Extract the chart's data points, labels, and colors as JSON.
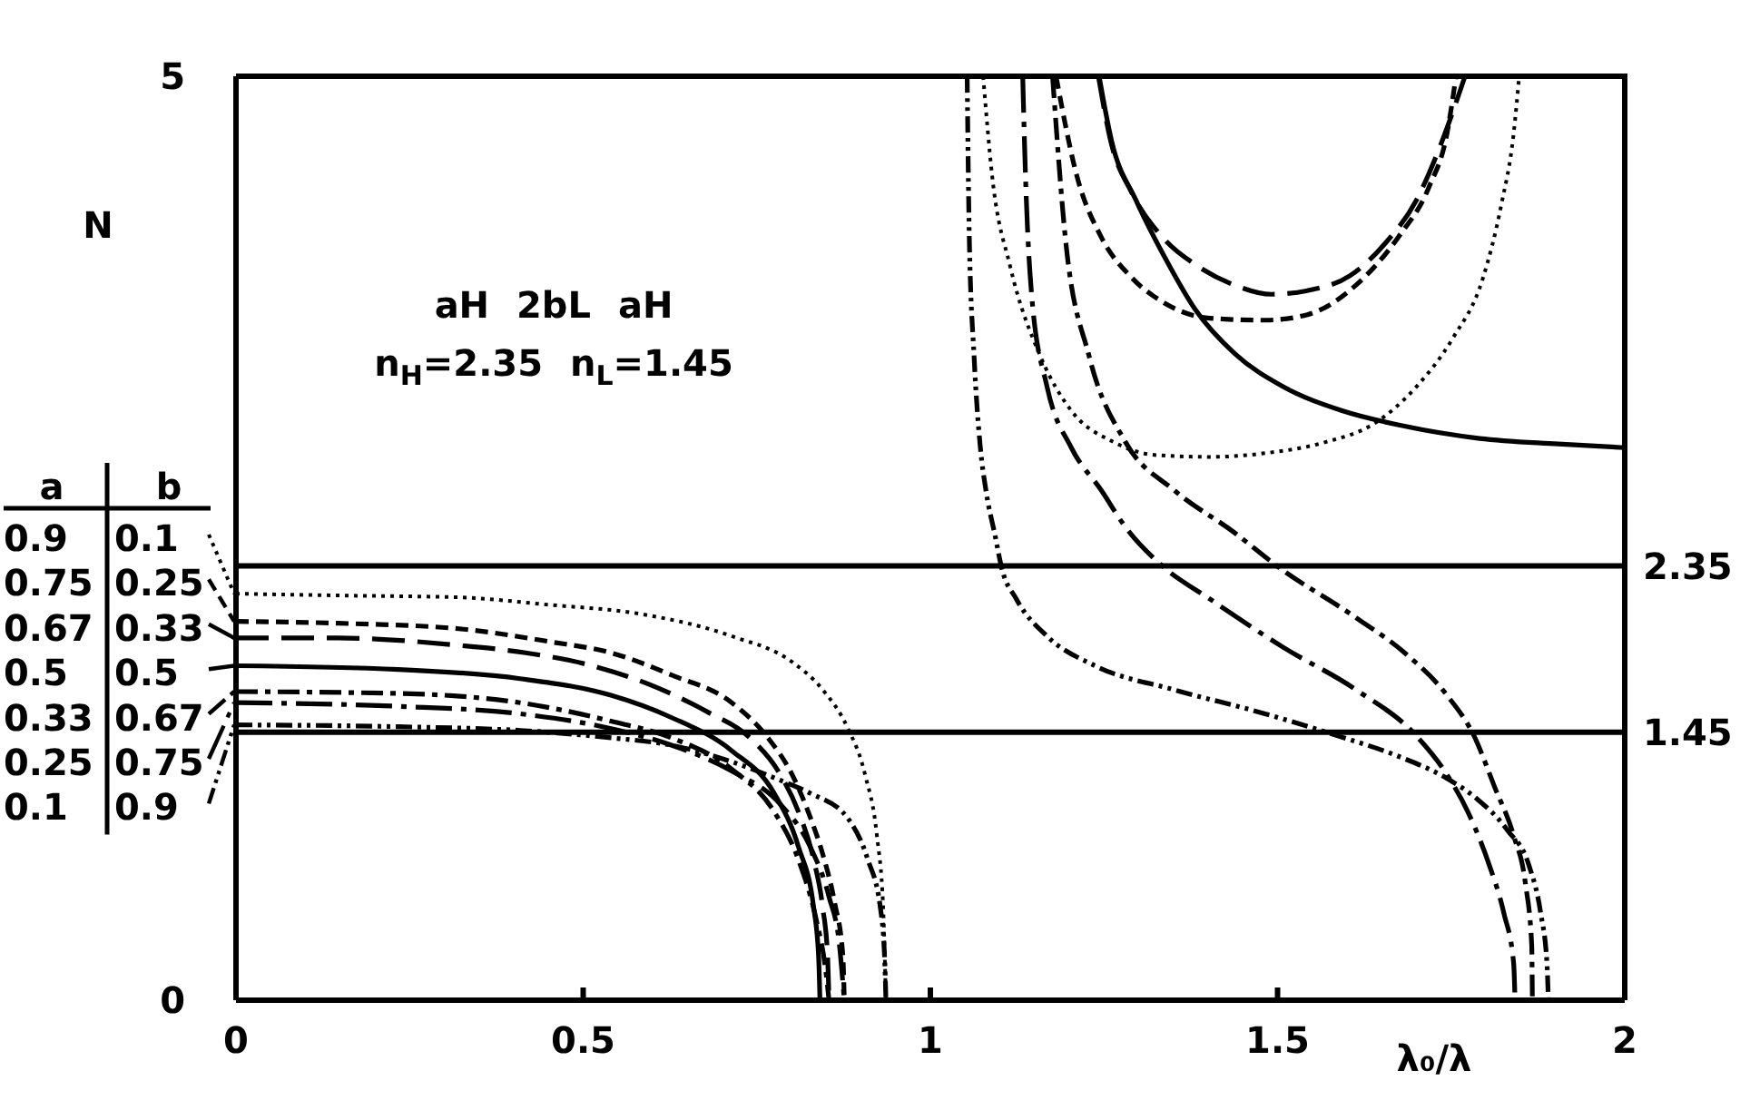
{
  "chart_data": {
    "type": "line",
    "xlabel": "λ₀/λ",
    "ylabel": "N",
    "legend_title": "a b",
    "legend": "left",
    "annotations": [
      "aH 2bL aH",
      "n$_{H}$=2.35 n$_{L}$=1.45"
    ],
    "xlim": [
      0,
      2
    ],
    "xticks": [
      0,
      0.5,
      1,
      1.5,
      2
    ],
    "ylim": [
      0,
      5
    ],
    "yticks": [
      0,
      5
    ],
    "ref_lines": [
      {
        "axis": "y",
        "value": 2.35,
        "label": "2.35",
        "color": "#000000"
      },
      {
        "axis": "y",
        "value": 1.45,
        "label": "1.45",
        "color": "#000000"
      }
    ],
    "series": [
      {
        "name": "0.9 0.1",
        "color": "#000000",
        "line_style": "dotted",
        "x": [
          0,
          0.15,
          0.321,
          0.45,
          0.583,
          0.714,
          0.801,
          0.845,
          0.88,
          0.906,
          0.923,
          0.932,
          0.936,
          1,
          1.076,
          1.089,
          1.115,
          1.159,
          1.203,
          1.264,
          1.325,
          1.403,
          1.482,
          1.569,
          1.639,
          1.7,
          1.752,
          1.796,
          1.822,
          1.84,
          1.848
        ],
        "values": [
          2.2,
          2.19,
          2.18,
          2.14,
          2.09,
          1.97,
          1.83,
          1.68,
          1.48,
          1.22,
          0.89,
          0.5,
          0,
          null,
          5,
          4.46,
          3.97,
          3.48,
          3.19,
          3.02,
          2.95,
          2.94,
          2.96,
          3.02,
          3.12,
          3.32,
          3.58,
          3.91,
          4.3,
          4.69,
          5
        ]
      },
      {
        "name": "0.75 0.25",
        "color": "#000000",
        "line_style": "dashed",
        "x": [
          0,
          0.147,
          0.321,
          0.452,
          0.54,
          0.627,
          0.714,
          0.766,
          0.801,
          0.827,
          0.845,
          0.862,
          0.874,
          0.876,
          1,
          1.181,
          1.211,
          1.246,
          1.29,
          1.334,
          1.403,
          1.482,
          1.543,
          1.613,
          1.674,
          1.718,
          1.744,
          1.757
        ],
        "values": [
          2.05,
          2.04,
          2.01,
          1.94,
          1.88,
          1.76,
          1.61,
          1.42,
          1.22,
          0.99,
          0.79,
          0.53,
          0.24,
          0,
          null,
          5,
          4.46,
          4.13,
          3.91,
          3.78,
          3.69,
          3.68,
          3.71,
          3.87,
          4.13,
          4.4,
          4.69,
          5
        ]
      },
      {
        "name": "0.67 0.33",
        "color": "#000000",
        "line_style": "longdash",
        "x": [
          0,
          0.147,
          0.321,
          0.417,
          0.513,
          0.601,
          0.679,
          0.74,
          0.784,
          0.81,
          0.832,
          0.845,
          0.852,
          0.854,
          1,
          1.242,
          1.259,
          1.29,
          1.334,
          1.386,
          1.438,
          1.491,
          1.543,
          1.604,
          1.656,
          1.7,
          1.735,
          1.77
        ],
        "values": [
          1.96,
          1.96,
          1.92,
          1.88,
          1.81,
          1.7,
          1.56,
          1.42,
          1.22,
          1.02,
          0.76,
          0.5,
          0.24,
          0,
          null,
          5,
          4.66,
          4.37,
          4.13,
          3.97,
          3.87,
          3.82,
          3.84,
          3.92,
          4.1,
          4.33,
          4.63,
          5
        ]
      },
      {
        "name": "0.5 0.5",
        "color": "#000000",
        "line_style": "solid",
        "x": [
          0,
          0.234,
          0.409,
          0.54,
          0.627,
          0.714,
          0.775,
          0.81,
          0.832,
          0.839,
          0.841,
          1,
          1.243,
          1.261,
          1.296,
          1.339,
          1.381,
          1.438,
          1.508,
          1.593,
          1.678,
          1.791,
          1.904,
          2
        ],
        "values": [
          1.81,
          1.79,
          1.74,
          1.65,
          1.53,
          1.35,
          1.12,
          0.83,
          0.5,
          0.24,
          0,
          null,
          5,
          4.65,
          4.33,
          4.01,
          3.74,
          3.5,
          3.32,
          3.19,
          3.11,
          3.04,
          3.01,
          2.99
        ]
      },
      {
        "name": "0.33 0.67",
        "color": "#000000",
        "line_style": "dashdot",
        "x": [
          0,
          0.234,
          0.409,
          0.54,
          0.627,
          0.714,
          0.775,
          0.81,
          0.836,
          0.849,
          0.854,
          1,
          1.176,
          1.194,
          1.229,
          1.281,
          1.351,
          1.438,
          1.499,
          1.613,
          1.683,
          1.744,
          1.783,
          1.813,
          1.84,
          1.857,
          1.866,
          1.867
        ],
        "values": [
          1.67,
          1.66,
          1.61,
          1.51,
          1.42,
          1.25,
          1.02,
          0.76,
          0.43,
          0.17,
          0,
          null,
          5,
          4.14,
          3.48,
          3.02,
          2.76,
          2.53,
          2.35,
          2.07,
          1.88,
          1.65,
          1.43,
          1.15,
          0.89,
          0.63,
          0.3,
          0
        ]
      },
      {
        "name": "0.25 0.75",
        "color": "#000000",
        "line_style": "longdashdot",
        "x": [
          0,
          0.234,
          0.409,
          0.54,
          0.627,
          0.714,
          0.784,
          0.827,
          0.854,
          0.869,
          0.876,
          1,
          1.133,
          1.137,
          1.146,
          1.168,
          1.203,
          1.246,
          1.281,
          1.334,
          1.403,
          1.508,
          1.613,
          1.7,
          1.744,
          1.774,
          1.805,
          1.826,
          1.84,
          1.842
        ],
        "values": [
          1.61,
          1.59,
          1.55,
          1.47,
          1.38,
          1.24,
          1.06,
          0.83,
          0.56,
          0.3,
          0,
          null,
          5,
          4.46,
          3.81,
          3.32,
          2.99,
          2.76,
          2.56,
          2.35,
          2.17,
          1.91,
          1.68,
          1.43,
          1.22,
          1.02,
          0.73,
          0.47,
          0.2,
          0
        ]
      },
      {
        "name": "0.1 0.9",
        "color": "#000000",
        "line_style": "dashdotdot",
        "x": [
          0,
          0.234,
          0.409,
          0.54,
          0.627,
          0.714,
          0.784,
          0.827,
          0.88,
          0.91,
          0.928,
          0.934,
          0.936,
          1,
          1.053,
          1.056,
          1.063,
          1.072,
          1.08,
          1.094,
          1.102,
          1.124,
          1.168,
          1.237,
          1.351,
          1.482,
          1.587,
          1.674,
          1.744,
          1.787,
          1.831,
          1.862,
          1.879,
          1.888,
          1.89
        ],
        "values": [
          1.49,
          1.48,
          1.46,
          1.42,
          1.38,
          1.29,
          1.19,
          1.12,
          0.99,
          0.76,
          0.5,
          0.24,
          0,
          null,
          5,
          4.14,
          3.48,
          2.99,
          2.76,
          2.5,
          2.35,
          2.17,
          1.97,
          1.81,
          1.68,
          1.55,
          1.43,
          1.32,
          1.2,
          1.09,
          0.92,
          0.73,
          0.47,
          0.2,
          0
        ]
      }
    ]
  }
}
